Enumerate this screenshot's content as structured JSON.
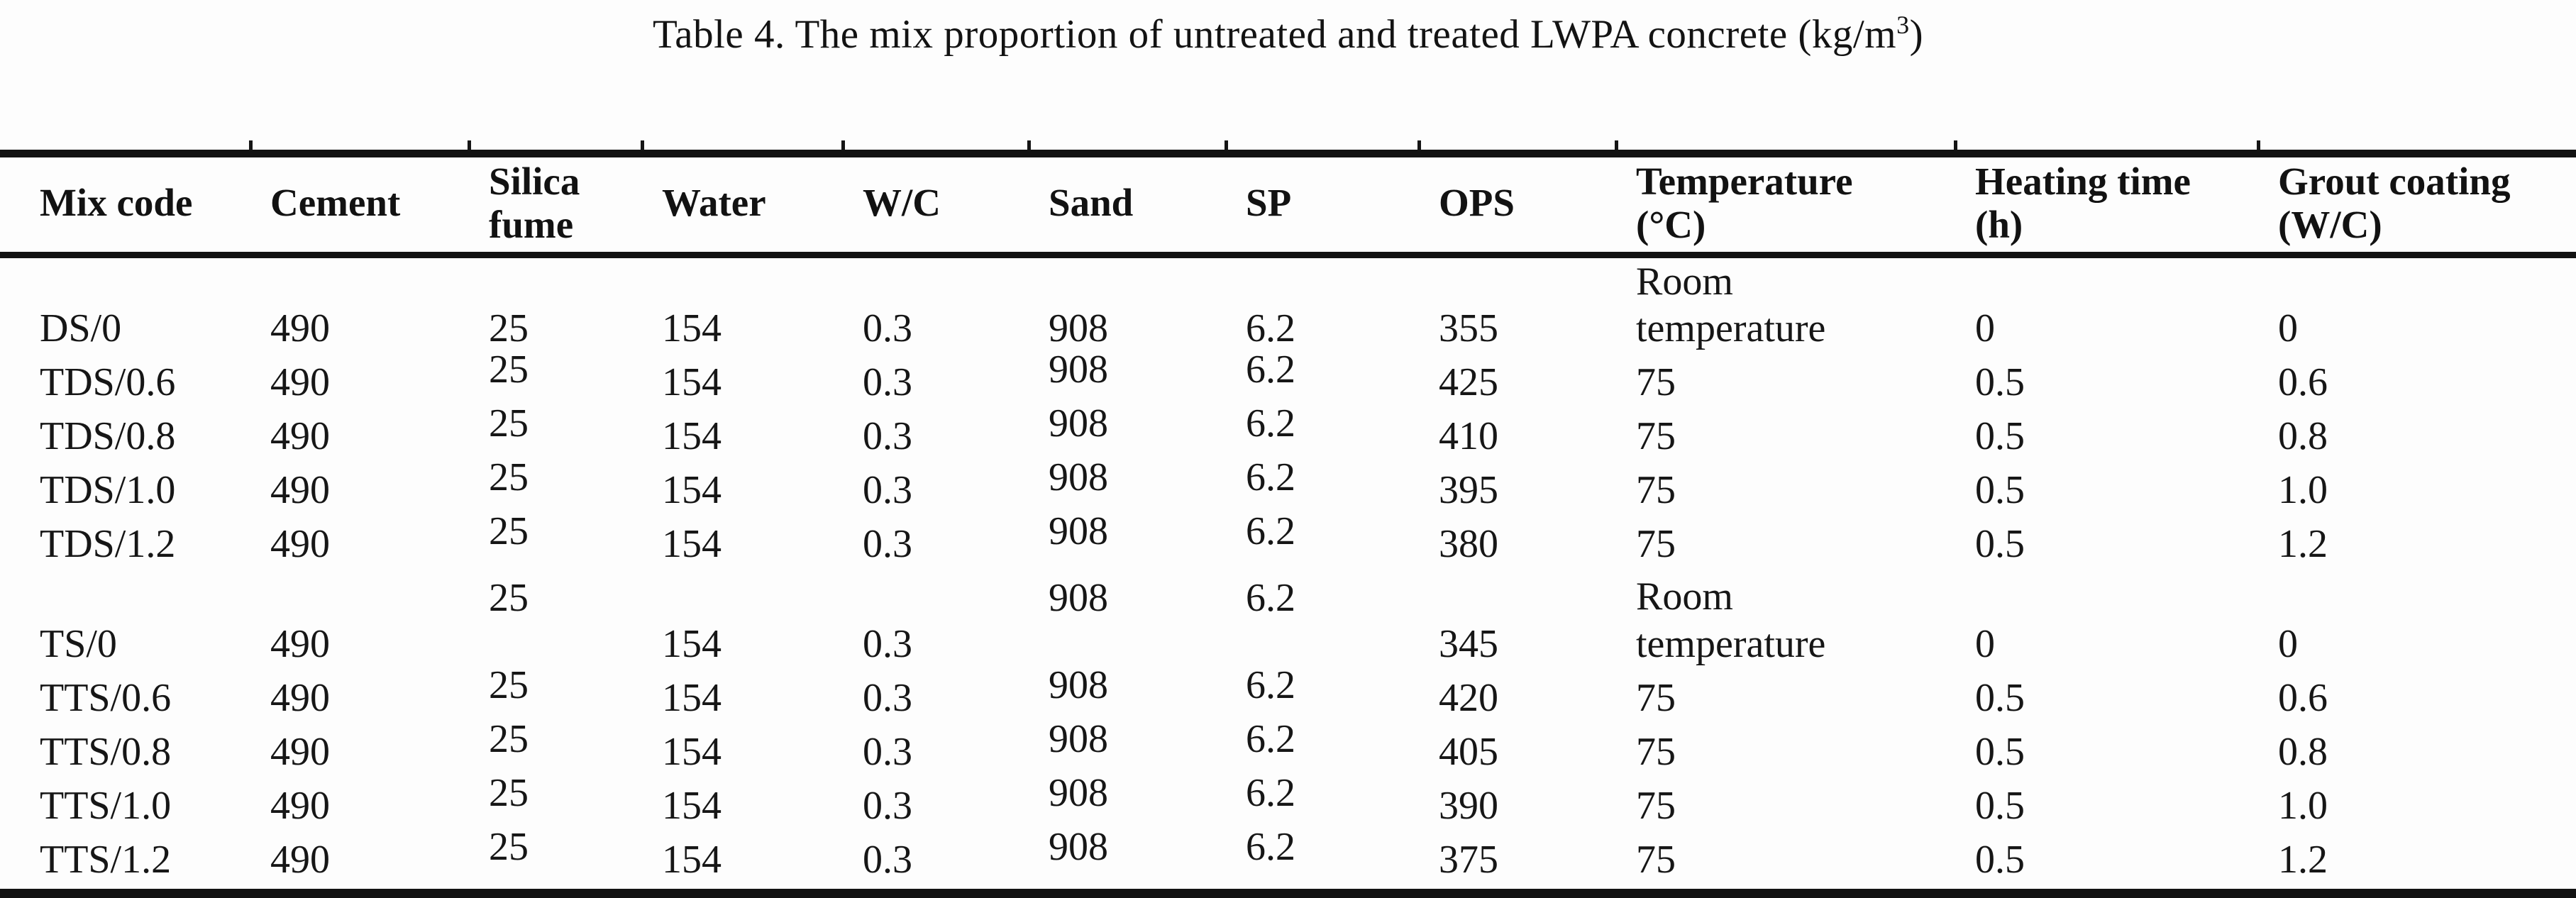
{
  "title": {
    "prefix": "Table 4. The mix proportion of untreated and treated LWPA concrete (kg/m",
    "superscript": "3",
    "suffix": ")"
  },
  "table": {
    "columns": [
      {
        "id": "mix-code",
        "label": "Mix code"
      },
      {
        "id": "cement",
        "label": "Cement"
      },
      {
        "id": "silica-fume",
        "label": "Silica\nfume"
      },
      {
        "id": "water",
        "label": "Water"
      },
      {
        "id": "wc",
        "label": "W/C"
      },
      {
        "id": "sand",
        "label": "Sand"
      },
      {
        "id": "sp",
        "label": "SP"
      },
      {
        "id": "ops",
        "label": "OPS"
      },
      {
        "id": "temperature",
        "label": "Temperature\n(°C)"
      },
      {
        "id": "heating-time",
        "label": "Heating time\n(h)"
      },
      {
        "id": "grout-coating",
        "label": "Grout coating\n(W/C)"
      }
    ],
    "rows": [
      {
        "raised": false,
        "cells": [
          "DS/0",
          "490",
          "25",
          "154",
          "0.3",
          "908",
          "6.2",
          "355",
          "Room\ntemperature",
          "0",
          "0"
        ]
      },
      {
        "raised": true,
        "cells": [
          "TDS/0.6",
          "490",
          "25",
          "154",
          "0.3",
          "908",
          "6.2",
          "425",
          "75",
          "0.5",
          "0.6"
        ]
      },
      {
        "raised": true,
        "cells": [
          "TDS/0.8",
          "490",
          "25",
          "154",
          "0.3",
          "908",
          "6.2",
          "410",
          "75",
          "0.5",
          "0.8"
        ]
      },
      {
        "raised": true,
        "cells": [
          "TDS/1.0",
          "490",
          "25",
          "154",
          "0.3",
          "908",
          "6.2",
          "395",
          "75",
          "0.5",
          "1.0"
        ]
      },
      {
        "raised": true,
        "cells": [
          "TDS/1.2",
          "490",
          "25",
          "154",
          "0.3",
          "908",
          "6.2",
          "380",
          "75",
          "0.5",
          "1.2"
        ]
      },
      {
        "raised": true,
        "cells": [
          "TS/0",
          "490",
          "25",
          "154",
          "0.3",
          "908",
          "6.2",
          "345",
          "Room\ntemperature",
          "0",
          "0"
        ]
      },
      {
        "raised": true,
        "cells": [
          "TTS/0.6",
          "490",
          "25",
          "154",
          "0.3",
          "908",
          "6.2",
          "420",
          "75",
          "0.5",
          "0.6"
        ]
      },
      {
        "raised": true,
        "cells": [
          "TTS/0.8",
          "490",
          "25",
          "154",
          "0.3",
          "908",
          "6.2",
          "405",
          "75",
          "0.5",
          "0.8"
        ]
      },
      {
        "raised": true,
        "cells": [
          "TTS/1.0",
          "490",
          "25",
          "154",
          "0.3",
          "908",
          "6.2",
          "390",
          "75",
          "0.5",
          "1.0"
        ]
      },
      {
        "raised": true,
        "cells": [
          "TTS/1.2",
          "490",
          "25",
          "154",
          "0.3",
          "908",
          "6.2",
          "375",
          "75",
          "0.5",
          "1.2"
        ]
      }
    ]
  }
}
